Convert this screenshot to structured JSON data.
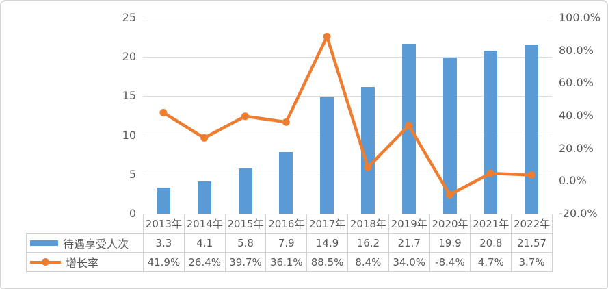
{
  "colors": {
    "bar": "#5B9BD5",
    "line": "#ED7D31",
    "gridline": "#D9D9D9",
    "axis_text": "#595959",
    "table_border": "#D2D2D2",
    "frame_border": "#D4D4D4",
    "background": "#FFFFFF"
  },
  "chart_data": {
    "type": "combo_bar_line",
    "title": "",
    "categories": [
      "2013年",
      "2014年",
      "2015年",
      "2016年",
      "2017年",
      "2018年",
      "2019年",
      "2020年",
      "2021年",
      "2022年"
    ],
    "series": [
      {
        "name": "待遇享受人次",
        "chart_type": "bar",
        "axis": "left",
        "values": [
          3.3,
          4.1,
          5.8,
          7.9,
          14.9,
          16.2,
          21.7,
          19.9,
          20.8,
          21.57
        ],
        "labels": [
          "3.3",
          "4.1",
          "5.8",
          "7.9",
          "14.9",
          "16.2",
          "21.7",
          "19.9",
          "20.8",
          "21.57"
        ]
      },
      {
        "name": "增长率",
        "chart_type": "line",
        "axis": "right",
        "values": [
          41.9,
          26.4,
          39.7,
          36.1,
          88.5,
          8.4,
          34.0,
          -8.4,
          4.7,
          3.7
        ],
        "labels": [
          "41.9%",
          "26.4%",
          "39.7%",
          "36.1%",
          "88.5%",
          "8.4%",
          "34.0%",
          "-8.4%",
          "4.7%",
          "3.7%"
        ]
      }
    ],
    "left_axis": {
      "min": 0,
      "max": 25,
      "tick_values": [
        0,
        5,
        10,
        15,
        20,
        25
      ],
      "tick_labels": [
        "0",
        "5",
        "10",
        "15",
        "20",
        "25"
      ]
    },
    "right_axis": {
      "min": -20,
      "max": 100,
      "tick_values": [
        -20,
        0,
        20,
        40,
        60,
        80,
        100
      ],
      "tick_labels": [
        "-20.0%",
        "0.0%",
        "20.0%",
        "40.0%",
        "60.0%",
        "80.0%",
        "100.0%"
      ]
    },
    "grid": true,
    "legend_position": "data-table-left",
    "data_table_shown": true
  }
}
